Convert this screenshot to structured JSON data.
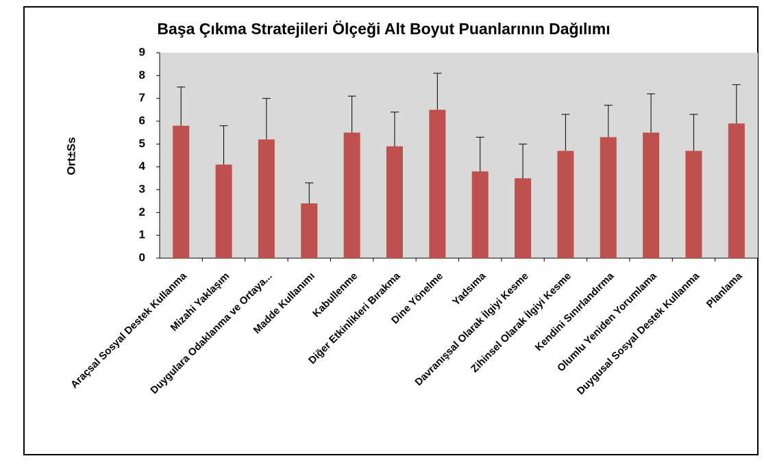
{
  "chart_data": {
    "type": "bar",
    "title": "Başa Çıkma Stratejileri Ölçeği Alt Boyut Puanlarının Dağılımı",
    "y_label": "Ort±Ss",
    "categories": [
      "Araçsal Sosyal Destek Kullanma",
      "Mizahi Yaklaşım",
      "Duygulara Odaklanma ve Ortaya...",
      "Madde Kullanımı",
      "Kabullenme",
      "Diğer Etkinlikleri Bırakma",
      "Dine Yönelme",
      "Yadsıma",
      "Davranışsal Olarak İlgiyi Kesme",
      "Zihinsel Olarak İlgiyi Kesme",
      "Kendini Sınırlandırma",
      "Olumlu Yeniden Yorumlama",
      "Duygusal Sosyal Destek Kullanma",
      "Planlama"
    ],
    "values": [
      5.8,
      4.1,
      5.2,
      2.4,
      5.5,
      4.9,
      6.5,
      3.8,
      3.5,
      4.7,
      5.3,
      5.5,
      4.7,
      5.9
    ],
    "errors": [
      1.7,
      1.7,
      1.8,
      0.9,
      1.6,
      1.5,
      1.6,
      1.5,
      1.5,
      1.6,
      1.4,
      1.7,
      1.6,
      1.7
    ],
    "color": "#c0504d",
    "ylim": [
      0,
      9
    ],
    "yticks": [
      0,
      1,
      2,
      3,
      4,
      5,
      6,
      7,
      8,
      9
    ],
    "grid": false
  }
}
